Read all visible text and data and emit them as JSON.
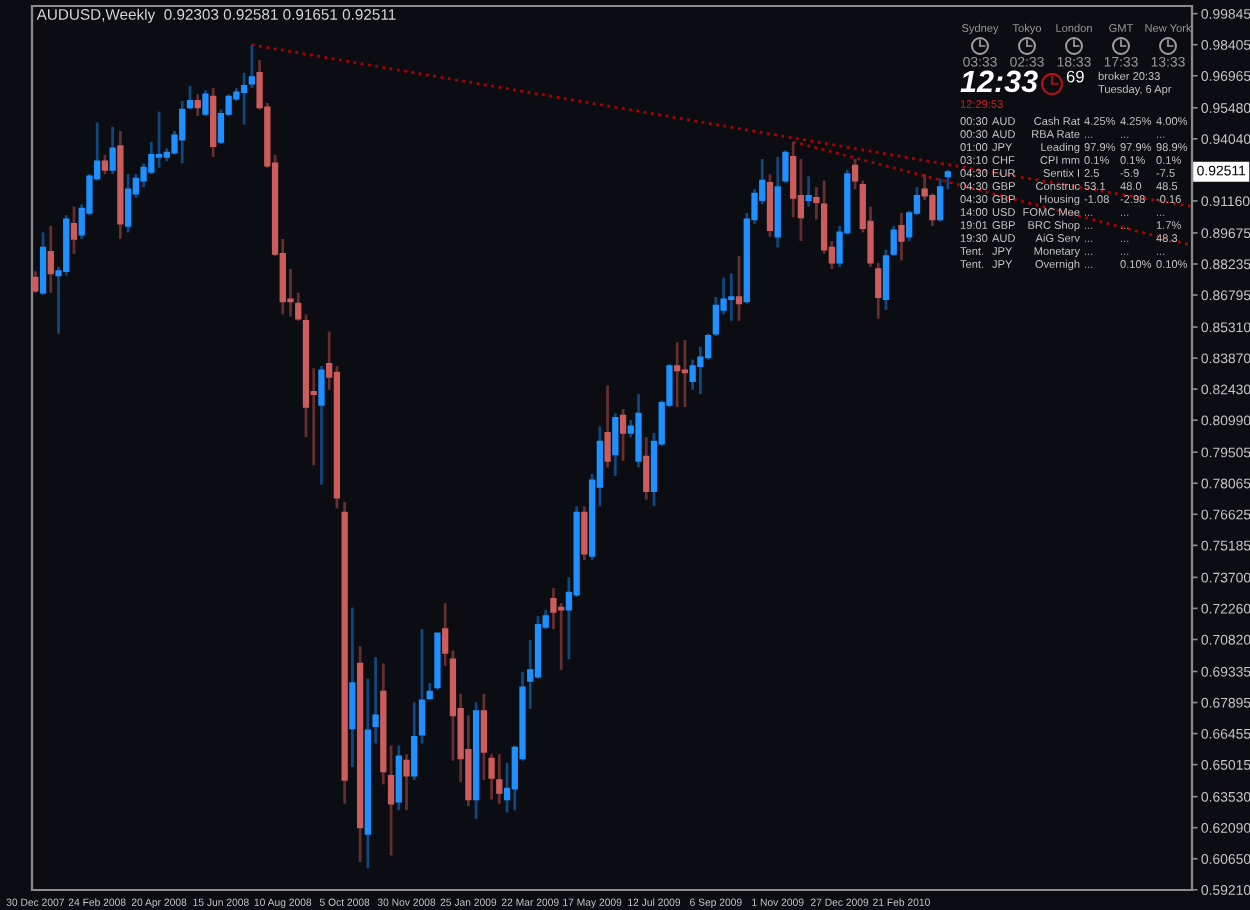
{
  "chart_data": [
    {
      "type": "candlestick",
      "title": "AUDUSD,Weekly  0.92303 0.92581 0.91651 0.92511",
      "x": [
        "2007-12-30",
        "2008-01-06",
        "2008-01-13",
        "2008-01-20",
        "2008-01-27",
        "2008-02-03",
        "2008-02-10",
        "2008-02-17",
        "2008-02-24",
        "2008-03-02",
        "2008-03-09",
        "2008-03-16",
        "2008-03-23",
        "2008-03-30",
        "2008-04-06",
        "2008-04-13",
        "2008-04-20",
        "2008-04-27",
        "2008-05-04",
        "2008-05-11",
        "2008-05-18",
        "2008-05-25",
        "2008-06-01",
        "2008-06-08",
        "2008-06-15",
        "2008-06-22",
        "2008-06-29",
        "2008-07-06",
        "2008-07-13",
        "2008-07-20",
        "2008-07-27",
        "2008-08-03",
        "2008-08-10",
        "2008-08-17",
        "2008-08-24",
        "2008-08-31",
        "2008-09-07",
        "2008-09-14",
        "2008-09-21",
        "2008-09-28",
        "2008-10-05",
        "2008-10-12",
        "2008-10-19",
        "2008-10-26",
        "2008-11-02",
        "2008-11-09",
        "2008-11-16",
        "2008-11-23",
        "2008-11-30",
        "2008-12-07",
        "2008-12-14",
        "2008-12-21",
        "2008-12-28",
        "2009-01-04",
        "2009-01-11",
        "2009-01-18",
        "2009-01-25",
        "2009-02-01",
        "2009-02-08",
        "2009-02-15",
        "2009-02-22",
        "2009-03-01",
        "2009-03-08",
        "2009-03-15",
        "2009-03-22",
        "2009-03-29",
        "2009-04-05",
        "2009-04-12",
        "2009-04-19",
        "2009-04-26",
        "2009-05-03",
        "2009-05-10",
        "2009-05-17",
        "2009-05-24",
        "2009-05-31",
        "2009-06-07",
        "2009-06-14",
        "2009-06-21",
        "2009-06-28",
        "2009-07-05",
        "2009-07-12",
        "2009-07-19",
        "2009-07-26",
        "2009-08-02",
        "2009-08-09",
        "2009-08-16",
        "2009-08-23",
        "2009-08-30",
        "2009-09-06",
        "2009-09-13",
        "2009-09-20",
        "2009-09-27",
        "2009-10-04",
        "2009-10-11",
        "2009-10-18",
        "2009-10-25",
        "2009-11-01",
        "2009-11-08",
        "2009-11-15",
        "2009-11-22",
        "2009-11-29",
        "2009-12-06",
        "2009-12-13",
        "2009-12-20",
        "2009-12-27",
        "2010-01-03",
        "2010-01-10",
        "2010-01-17",
        "2010-01-24",
        "2010-01-31",
        "2010-02-07",
        "2010-02-14",
        "2010-02-21",
        "2010-02-28",
        "2010-03-07",
        "2010-03-14",
        "2010-03-21",
        "2010-03-28",
        "2010-04-04"
      ],
      "ohlc": [
        [
          0.876,
          0.879,
          0.869,
          0.87
        ],
        [
          0.869,
          0.897,
          0.868,
          0.89
        ],
        [
          0.888,
          0.9,
          0.869,
          0.878
        ],
        [
          0.877,
          0.881,
          0.85,
          0.879
        ],
        [
          0.879,
          0.905,
          0.877,
          0.903
        ],
        [
          0.901,
          0.909,
          0.887,
          0.894
        ],
        [
          0.896,
          0.91,
          0.894,
          0.908
        ],
        [
          0.906,
          0.924,
          0.905,
          0.923
        ],
        [
          0.922,
          0.948,
          0.921,
          0.93
        ],
        [
          0.93,
          0.933,
          0.924,
          0.926
        ],
        [
          0.926,
          0.946,
          0.924,
          0.936
        ],
        [
          0.937,
          0.944,
          0.894,
          0.901
        ],
        [
          0.9,
          0.924,
          0.897,
          0.917
        ],
        [
          0.915,
          0.924,
          0.913,
          0.922
        ],
        [
          0.921,
          0.929,
          0.918,
          0.927
        ],
        [
          0.925,
          0.939,
          0.924,
          0.933
        ],
        [
          0.932,
          0.953,
          0.927,
          0.933
        ],
        [
          0.932,
          0.936,
          0.93,
          0.934
        ],
        [
          0.934,
          0.944,
          0.933,
          0.942
        ],
        [
          0.94,
          0.958,
          0.929,
          0.954
        ],
        [
          0.955,
          0.965,
          0.954,
          0.958
        ],
        [
          0.958,
          0.961,
          0.951,
          0.955
        ],
        [
          0.952,
          0.963,
          0.951,
          0.961
        ],
        [
          0.96,
          0.964,
          0.932,
          0.937
        ],
        [
          0.939,
          0.954,
          0.938,
          0.952
        ],
        [
          0.952,
          0.961,
          0.951,
          0.96
        ],
        [
          0.959,
          0.964,
          0.958,
          0.962
        ],
        [
          0.962,
          0.971,
          0.947,
          0.965
        ],
        [
          0.966,
          0.984,
          0.964,
          0.969
        ],
        [
          0.971,
          0.977,
          0.954,
          0.955
        ],
        [
          0.955,
          0.957,
          0.927,
          0.928
        ],
        [
          0.929,
          0.933,
          0.886,
          0.887
        ],
        [
          0.887,
          0.894,
          0.859,
          0.865
        ],
        [
          0.866,
          0.88,
          0.858,
          0.865
        ],
        [
          0.864,
          0.869,
          0.856,
          0.857
        ],
        [
          0.856,
          0.859,
          0.802,
          0.816
        ],
        [
          0.823,
          0.834,
          0.789,
          0.822
        ],
        [
          0.817,
          0.835,
          0.78,
          0.833
        ],
        [
          0.836,
          0.851,
          0.824,
          0.83
        ],
        [
          0.832,
          0.835,
          0.769,
          0.774
        ],
        [
          0.767,
          0.772,
          0.632,
          0.643
        ],
        [
          0.667,
          0.723,
          0.649,
          0.688
        ],
        [
          0.697,
          0.705,
          0.605,
          0.621
        ],
        [
          0.618,
          0.69,
          0.602,
          0.666
        ],
        [
          0.668,
          0.7,
          0.66,
          0.673
        ],
        [
          0.684,
          0.697,
          0.641,
          0.647
        ],
        [
          0.645,
          0.659,
          0.608,
          0.632
        ],
        [
          0.633,
          0.659,
          0.629,
          0.654
        ],
        [
          0.652,
          0.655,
          0.629,
          0.645
        ],
        [
          0.645,
          0.679,
          0.643,
          0.663
        ],
        [
          0.664,
          0.713,
          0.66,
          0.68
        ],
        [
          0.681,
          0.688,
          0.68,
          0.684
        ],
        [
          0.686,
          0.711,
          0.685,
          0.711
        ],
        [
          0.713,
          0.725,
          0.696,
          0.702
        ],
        [
          0.699,
          0.703,
          0.652,
          0.673
        ],
        [
          0.676,
          0.683,
          0.642,
          0.653
        ],
        [
          0.657,
          0.673,
          0.631,
          0.634
        ],
        [
          0.634,
          0.679,
          0.625,
          0.675
        ],
        [
          0.675,
          0.683,
          0.643,
          0.656
        ],
        [
          0.653,
          0.655,
          0.634,
          0.644
        ],
        [
          0.643,
          0.655,
          0.632,
          0.637
        ],
        [
          0.634,
          0.651,
          0.628,
          0.639
        ],
        [
          0.639,
          0.659,
          0.629,
          0.658
        ],
        [
          0.653,
          0.693,
          0.652,
          0.686
        ],
        [
          0.689,
          0.708,
          0.676,
          0.694
        ],
        [
          0.691,
          0.719,
          0.69,
          0.715
        ],
        [
          0.714,
          0.722,
          0.713,
          0.719
        ],
        [
          0.727,
          0.732,
          0.713,
          0.721
        ],
        [
          0.723,
          0.725,
          0.694,
          0.722
        ],
        [
          0.722,
          0.737,
          0.699,
          0.73
        ],
        [
          0.729,
          0.77,
          0.728,
          0.767
        ],
        [
          0.767,
          0.77,
          0.745,
          0.748
        ],
        [
          0.747,
          0.785,
          0.745,
          0.782
        ],
        [
          0.779,
          0.807,
          0.77,
          0.8
        ],
        [
          0.804,
          0.826,
          0.788,
          0.791
        ],
        [
          0.794,
          0.813,
          0.784,
          0.811
        ],
        [
          0.812,
          0.815,
          0.791,
          0.804
        ],
        [
          0.804,
          0.81,
          0.802,
          0.807
        ],
        [
          0.791,
          0.822,
          0.788,
          0.813
        ],
        [
          0.793,
          0.802,
          0.773,
          0.777
        ],
        [
          0.777,
          0.804,
          0.77,
          0.8
        ],
        [
          0.799,
          0.819,
          0.798,
          0.818
        ],
        [
          0.817,
          0.836,
          0.816,
          0.835
        ],
        [
          0.835,
          0.846,
          0.816,
          0.833
        ],
        [
          0.833,
          0.847,
          0.816,
          0.832
        ],
        [
          0.828,
          0.838,
          0.824,
          0.835
        ],
        [
          0.835,
          0.844,
          0.822,
          0.839
        ],
        [
          0.839,
          0.85,
          0.838,
          0.849
        ],
        [
          0.85,
          0.867,
          0.849,
          0.863
        ],
        [
          0.861,
          0.876,
          0.859,
          0.866
        ],
        [
          0.866,
          0.878,
          0.856,
          0.867
        ],
        [
          0.867,
          0.886,
          0.856,
          0.864
        ],
        [
          0.865,
          0.906,
          0.864,
          0.903
        ],
        [
          0.903,
          0.917,
          0.901,
          0.915
        ],
        [
          0.912,
          0.931,
          0.91,
          0.921
        ],
        [
          0.92,
          0.924,
          0.895,
          0.898
        ],
        [
          0.895,
          0.932,
          0.89,
          0.918
        ],
        [
          0.921,
          0.935,
          0.92,
          0.934
        ],
        [
          0.932,
          0.939,
          0.904,
          0.913
        ],
        [
          0.914,
          0.931,
          0.893,
          0.904
        ],
        [
          0.912,
          0.923,
          0.909,
          0.914
        ],
        [
          0.913,
          0.918,
          0.903,
          0.911
        ],
        [
          0.91,
          0.921,
          0.887,
          0.889
        ],
        [
          0.89,
          0.893,
          0.88,
          0.883
        ],
        [
          0.883,
          0.9,
          0.881,
          0.897
        ],
        [
          0.897,
          0.926,
          0.896,
          0.924
        ],
        [
          0.928,
          0.931,
          0.917,
          0.921
        ],
        [
          0.919,
          0.921,
          0.897,
          0.899
        ],
        [
          0.902,
          0.909,
          0.881,
          0.883
        ],
        [
          0.88,
          0.883,
          0.857,
          0.867
        ],
        [
          0.866,
          0.889,
          0.861,
          0.886
        ],
        [
          0.887,
          0.9,
          0.886,
          0.898
        ],
        [
          0.9,
          0.906,
          0.884,
          0.893
        ],
        [
          0.895,
          0.907,
          0.893,
          0.906
        ],
        [
          0.906,
          0.918,
          0.905,
          0.914
        ],
        [
          0.917,
          0.924,
          0.912,
          0.914
        ],
        [
          0.914,
          0.915,
          0.9,
          0.903
        ],
        [
          0.903,
          0.922,
          0.902,
          0.918
        ],
        [
          0.923,
          0.926,
          0.917,
          0.925
        ]
      ],
      "colors": [
        "#cd5c5c",
        "#1e90ff",
        "#cd5c5c",
        "#1e90ff",
        "#1e90ff",
        "#cd5c5c",
        "#1e90ff",
        "#1e90ff",
        "#1e90ff",
        "#cd5c5c",
        "#1e90ff",
        "#cd5c5c",
        "#1e90ff",
        "#1e90ff",
        "#1e90ff",
        "#1e90ff",
        "#1e90ff",
        "#1e90ff",
        "#1e90ff",
        "#1e90ff",
        "#1e90ff",
        "#cd5c5c",
        "#1e90ff",
        "#cd5c5c",
        "#1e90ff",
        "#1e90ff",
        "#1e90ff",
        "#1e90ff",
        "#1e90ff",
        "#cd5c5c",
        "#cd5c5c",
        "#cd5c5c",
        "#cd5c5c",
        "#cd5c5c",
        "#cd5c5c",
        "#cd5c5c",
        "#cd5c5c",
        "#1e90ff",
        "#cd5c5c",
        "#cd5c5c",
        "#cd5c5c",
        "#1e90ff",
        "#cd5c5c",
        "#1e90ff",
        "#1e90ff",
        "#cd5c5c",
        "#cd5c5c",
        "#1e90ff",
        "#cd5c5c",
        "#1e90ff",
        "#1e90ff",
        "#1e90ff",
        "#1e90ff",
        "#cd5c5c",
        "#cd5c5c",
        "#cd5c5c",
        "#cd5c5c",
        "#1e90ff",
        "#cd5c5c",
        "#cd5c5c",
        "#cd5c5c",
        "#1e90ff",
        "#1e90ff",
        "#1e90ff",
        "#1e90ff",
        "#1e90ff",
        "#1e90ff",
        "#cd5c5c",
        "#cd5c5c",
        "#1e90ff",
        "#1e90ff",
        "#cd5c5c",
        "#1e90ff",
        "#1e90ff",
        "#cd5c5c",
        "#1e90ff",
        "#cd5c5c",
        "#1e90ff",
        "#1e90ff",
        "#cd5c5c",
        "#1e90ff",
        "#1e90ff",
        "#1e90ff",
        "#cd5c5c",
        "#cd5c5c",
        "#1e90ff",
        "#1e90ff",
        "#1e90ff",
        "#1e90ff",
        "#1e90ff",
        "#1e90ff",
        "#cd5c5c",
        "#1e90ff",
        "#1e90ff",
        "#1e90ff",
        "#cd5c5c",
        "#1e90ff",
        "#1e90ff",
        "#cd5c5c",
        "#cd5c5c",
        "#1e90ff",
        "#cd5c5c",
        "#cd5c5c",
        "#cd5c5c",
        "#1e90ff",
        "#1e90ff",
        "#cd5c5c",
        "#cd5c5c",
        "#cd5c5c",
        "#cd5c5c",
        "#1e90ff",
        "#1e90ff",
        "#cd5c5c",
        "#1e90ff",
        "#1e90ff",
        "#cd5c5c",
        "#cd5c5c",
        "#1e90ff",
        "#1e90ff"
      ],
      "series": [
        {
          "type": "line",
          "x": [
            "2008-07-13",
            "2010-11-11"
          ],
          "values": [
            0.984,
            0.909
          ],
          "color": "#b00000",
          "line_style": "dotted"
        },
        {
          "type": "line",
          "x": [
            "2009-11-15",
            "2010-11-11"
          ],
          "values": [
            0.939,
            0.891
          ],
          "color": "#b00000",
          "line_style": "dotted"
        }
      ],
      "xlim": [
        "2007-12-27",
        "2010-11-11"
      ],
      "xticks": [
        {
          "value": "2007-12-30",
          "label": "30 Dec 2007"
        },
        {
          "value": "2008-02-24",
          "label": "24 Feb 2008"
        },
        {
          "value": "2008-04-20",
          "label": "20 Apr 2008"
        },
        {
          "value": "2008-06-15",
          "label": "15 Jun 2008"
        },
        {
          "value": "2008-08-10",
          "label": "10 Aug 2008"
        },
        {
          "value": "2008-10-05",
          "label": "5 Oct 2008"
        },
        {
          "value": "2008-11-30",
          "label": "30 Nov 2008"
        },
        {
          "value": "2009-01-25",
          "label": "25 Jan 2009"
        },
        {
          "value": "2009-03-22",
          "label": "22 Mar 2009"
        },
        {
          "value": "2009-05-17",
          "label": "17 May 2009"
        },
        {
          "value": "2009-07-12",
          "label": "12 Jul 2009"
        },
        {
          "value": "2009-09-06",
          "label": "6 Sep 2009"
        },
        {
          "value": "2009-11-01",
          "label": "1 Nov 2009"
        },
        {
          "value": "2009-12-27",
          "label": "27 Dec 2009"
        },
        {
          "value": "2010-02-21",
          "label": "21 Feb 2010"
        }
      ],
      "ylim": [
        0.592,
        1.002
      ],
      "yticks": [
        {
          "value": 0.99845,
          "label": "0.99845"
        },
        {
          "value": 0.98405,
          "label": "0.98405"
        },
        {
          "value": 0.96965,
          "label": "0.96965"
        },
        {
          "value": 0.9548,
          "label": "0.95480"
        },
        {
          "value": 0.9404,
          "label": "0.94040"
        },
        {
          "value": 0.9116,
          "label": "0.91160"
        },
        {
          "value": 0.89675,
          "label": "0.89675"
        },
        {
          "value": 0.88235,
          "label": "0.88235"
        },
        {
          "value": 0.86795,
          "label": "0.86795"
        },
        {
          "value": 0.8531,
          "label": "0.85310"
        },
        {
          "value": 0.8387,
          "label": "0.83870"
        },
        {
          "value": 0.8243,
          "label": "0.82430"
        },
        {
          "value": 0.8099,
          "label": "0.80990"
        },
        {
          "value": 0.79505,
          "label": "0.79505"
        },
        {
          "value": 0.78065,
          "label": "0.78065"
        },
        {
          "value": 0.76625,
          "label": "0.76625"
        },
        {
          "value": 0.75185,
          "label": "0.75185"
        },
        {
          "value": 0.737,
          "label": "0.73700"
        },
        {
          "value": 0.7226,
          "label": "0.72260"
        },
        {
          "value": 0.7082,
          "label": "0.70820"
        },
        {
          "value": 0.69335,
          "label": "0.69335"
        },
        {
          "value": 0.67895,
          "label": "0.67895"
        },
        {
          "value": 0.66455,
          "label": "0.66455"
        },
        {
          "value": 0.65015,
          "label": "0.65015"
        },
        {
          "value": 0.6353,
          "label": "0.63530"
        },
        {
          "value": 0.6209,
          "label": "0.62090"
        },
        {
          "value": 0.6065,
          "label": "0.60650"
        },
        {
          "value": 0.5921,
          "label": "0.59210"
        }
      ],
      "annotations": [
        {
          "text": "0.92511",
          "y": 0.92511
        }
      ]
    },
    {
      "type": "other",
      "annotations": [
        "Sydney",
        "Tokyo",
        "London",
        "GMT",
        "New York",
        "03:33",
        "02:33",
        "18:33",
        "17:33",
        "13:33",
        "12:33",
        "69",
        "broker 20:33",
        "Tuesday, 6 Apr",
        "12:29:53",
        "00:30",
        "AUD",
        "Cash Rat",
        "4.25%",
        "4.25%",
        "4.00%",
        "00:30",
        "AUD",
        "RBA Rate",
        "...",
        "...",
        "...",
        "01:00",
        "JPY",
        "Leading",
        "97.9%",
        "97.9%",
        "98.9%",
        "03:10",
        "CHF",
        "CPI mm",
        "0.1%",
        "0.1%",
        "0.1%",
        "04:30",
        "EUR",
        "Sentix I",
        "2.5",
        "-5.9",
        "-7.5",
        "04:30",
        "GBP",
        "Construc",
        "53.1",
        "48.0",
        "48.5",
        "04:30",
        "GBP",
        "Housing",
        "-1.08",
        "-2.98",
        "-0.16",
        "14:00",
        "USD",
        "FOMC Mee",
        "...",
        "...",
        "...",
        "19:01",
        "GBP",
        "BRC Shop",
        "...",
        "...",
        "1.7%",
        "19:30",
        "AUD",
        "AiG Serv",
        "...",
        "...",
        "48.3",
        "Tent.",
        "JPY",
        "Monetary",
        "...",
        "...",
        "...",
        "Tent.",
        "JPY",
        "Overnigh",
        "...",
        "0.10%",
        "0.10%"
      ]
    }
  ]
}
